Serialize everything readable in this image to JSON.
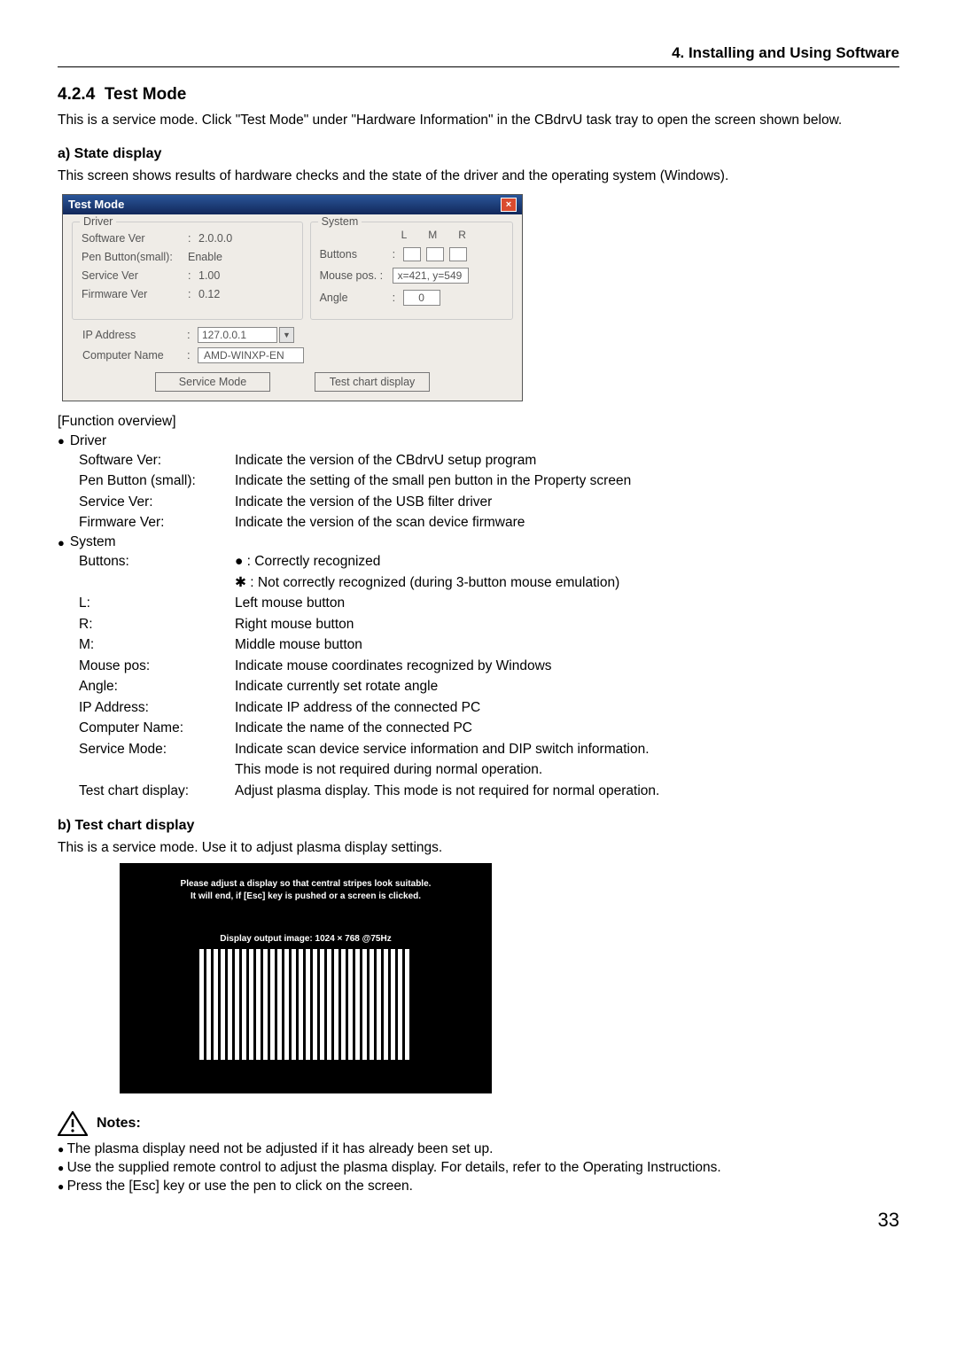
{
  "header": {
    "breadcrumb": "4. Installing and Using Software"
  },
  "section": {
    "number": "4.2.4",
    "title": "Test Mode",
    "intro": "This is a service mode. Click \"Test Mode\" under \"Hardware Information\" in the CBdrvU task tray to open the screen shown below."
  },
  "sub_a": {
    "title": "a) State display",
    "text": "This screen shows results of hardware checks and the state of the driver and the operating system (Windows)."
  },
  "dialog": {
    "title": "Test Mode",
    "driver_legend": "Driver",
    "system_legend": "System",
    "software_ver_label": "Software Ver",
    "software_ver_value": "2.0.0.0",
    "pen_button_label": "Pen Button(small):",
    "pen_button_value": "Enable",
    "service_ver_label": "Service Ver",
    "service_ver_value": "1.00",
    "firmware_ver_label": "Firmware Ver",
    "firmware_ver_value": "0.12",
    "lmr_l": "L",
    "lmr_m": "M",
    "lmr_r": "R",
    "buttons_label": "Buttons",
    "mouse_pos_label": "Mouse pos. :",
    "mouse_pos_value": "x=421, y=549",
    "angle_label": "Angle",
    "angle_value": "0",
    "ip_label": "IP Address",
    "ip_value": "127.0.0.1",
    "cn_label": "Computer Name",
    "cn_value": "AMD-WINXP-EN",
    "btn_service_mode": "Service Mode",
    "btn_test_chart": "Test chart display"
  },
  "function_overview_label": "[Function overview]",
  "driver_head": "Driver",
  "system_head": "System",
  "fn_driver": [
    {
      "k": "Software Ver:",
      "v": "Indicate the version of the CBdrvU setup program"
    },
    {
      "k": "Pen Button (small):",
      "v": "Indicate the setting of the small pen button in the Property screen"
    },
    {
      "k": "Service Ver:",
      "v": "Indicate the version of the USB filter driver"
    },
    {
      "k": "Firmware Ver:",
      "v": "Indicate the version of the scan device firmware"
    }
  ],
  "fn_system": [
    {
      "k": "Buttons:",
      "v": "● : Correctly recognized"
    },
    {
      "k": "",
      "v": "✱ : Not correctly recognized (during 3-button mouse emulation)"
    },
    {
      "k": "L:",
      "v": "Left mouse button"
    },
    {
      "k": "R:",
      "v": "Right mouse button"
    },
    {
      "k": "M:",
      "v": "Middle mouse button"
    },
    {
      "k": "Mouse pos:",
      "v": "Indicate mouse coordinates recognized by Windows"
    },
    {
      "k": "Angle:",
      "v": "Indicate currently set rotate angle"
    },
    {
      "k": "IP Address:",
      "v": "Indicate IP address of the connected PC"
    },
    {
      "k": "Computer Name:",
      "v": "Indicate the name of the connected PC"
    },
    {
      "k": "Service Mode:",
      "v": "Indicate scan device service information and DIP switch information."
    },
    {
      "k": "",
      "v": "This mode is not required during normal operation."
    },
    {
      "k": "Test chart display:",
      "v": "Adjust plasma display. This mode is not required for normal operation."
    }
  ],
  "sub_b": {
    "title": "b) Test chart display",
    "text": "This is a service mode. Use it to adjust plasma display settings."
  },
  "chart": {
    "line1": "Please adjust a display so that central stripes look suitable.",
    "line2": "It will end, if [Esc] key is pushed or a screen is clicked.",
    "info": "Display output image:  1024 × 768 @75Hz"
  },
  "notes": {
    "head": "Notes:",
    "items": [
      "The plasma display need not be adjusted if it has already been set up.",
      "Use the supplied remote control to adjust the plasma display. For details, refer to the Operating Instructions.",
      "Press the [Esc] key or use the pen to click on the screen."
    ]
  },
  "page_number": "33"
}
